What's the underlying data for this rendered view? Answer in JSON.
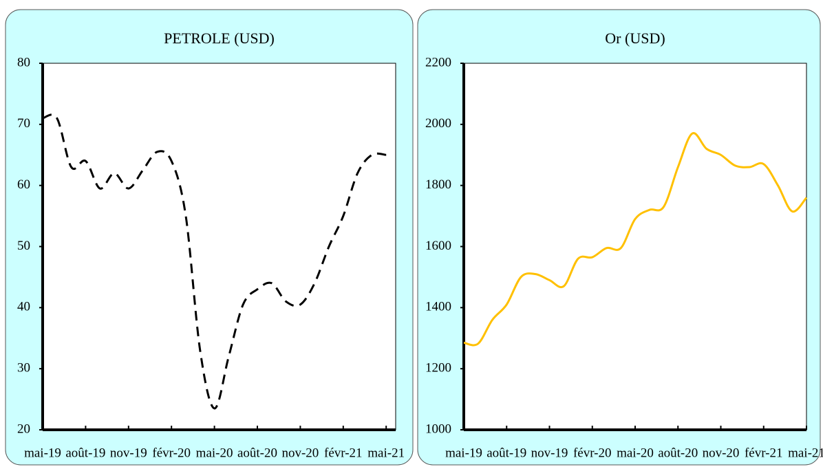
{
  "chart_data": [
    {
      "type": "line",
      "title": "PETROLE (USD)",
      "categories": [
        "mai-19",
        null,
        null,
        "août-19",
        null,
        null,
        "nov-19",
        null,
        null,
        "févr-20",
        null,
        null,
        "mai-20",
        null,
        null,
        "août-20",
        null,
        null,
        "nov-20",
        null,
        null,
        "févr-21",
        null,
        null,
        "mai-21"
      ],
      "series": [
        {
          "color": "#000000",
          "values": [
            71,
            71,
            63,
            64,
            59.5,
            62,
            59.5,
            62.5,
            65.5,
            64,
            55,
            33,
            23.5,
            32,
            40.5,
            43,
            44,
            41,
            40.5,
            44,
            50,
            55,
            62,
            65,
            65
          ]
        }
      ],
      "ylim": [
        20,
        80
      ],
      "yticks": [
        20,
        30,
        40,
        50,
        60,
        70,
        80
      ],
      "dashed": true
    },
    {
      "type": "line",
      "title": "Or (USD)",
      "categories": [
        "mai-19",
        null,
        null,
        "août-19",
        null,
        null,
        "nov-19",
        null,
        null,
        "févr-20",
        null,
        null,
        "mai-20",
        null,
        null,
        "août-20",
        null,
        null,
        "nov-20",
        null,
        null,
        "févr-21",
        null,
        null,
        "mai-21"
      ],
      "series": [
        {
          "color": "#ffc000",
          "values": [
            1285,
            1282,
            1360,
            1410,
            1500,
            1510,
            1490,
            1470,
            1560,
            1565,
            1595,
            1595,
            1690,
            1720,
            1730,
            1860,
            1970,
            1920,
            1900,
            1865,
            1860,
            1870,
            1800,
            1715,
            1760
          ]
        }
      ],
      "ylim": [
        1000,
        2200
      ],
      "yticks": [
        1000,
        1200,
        1400,
        1600,
        1800,
        2000,
        2200
      ],
      "dashed": false
    }
  ]
}
